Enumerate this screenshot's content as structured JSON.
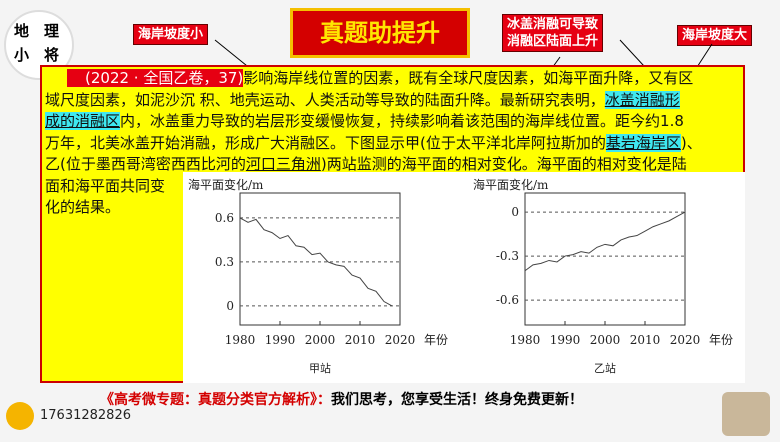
{
  "logo": {
    "text": [
      "地",
      "理",
      "小",
      "将"
    ]
  },
  "banner": {
    "title": "真题助提升"
  },
  "notes": {
    "left": "海岸坡度小",
    "middle": [
      "冰盖消融可导致",
      "消融区陆面上升"
    ],
    "right": "海岸坡度大"
  },
  "question": {
    "lines": [
      [
        "(2022 · 全国乙卷，37)",
        "影响海岸线位置的因素，既有全球尺度因素，如海平面升降，又有区"
      ],
      [
        "域尺度因素，如泥沙沉 积、地壳运动、人类活动等导致的陆面升降。最新研究表明，",
        "冰盖消融形"
      ],
      [
        "成的消融区",
        "内，冰盖重力导致的岩层形变缓慢恢复，持续影响着该范围的海岸线位置。距今约1.8"
      ],
      [
        "万年，北美冰盖开始消融，形成广大消融区。下图显示甲(位于太平洋北岸阿拉斯加的",
        "基岩海岸区",
        ")、"
      ],
      [
        "乙(位于墨西哥湾密西西比河的",
        "河口三角洲",
        ")两站监测的海平面的相对变化。海平面的相对变化是陆"
      ],
      [
        "面和海平面共同变"
      ],
      [
        "化的结果。"
      ]
    ]
  },
  "charts": [
    {
      "type": "line",
      "title": "甲站",
      "y_label": "海平面变化/m",
      "x_label": "年份",
      "x": [
        1980,
        1982,
        1984,
        1986,
        1988,
        1990,
        1992,
        1994,
        1996,
        1998,
        2000,
        2002,
        2004,
        2006,
        2008,
        2010,
        2012,
        2014,
        2016,
        2018
      ],
      "values": [
        0.6,
        0.57,
        0.59,
        0.52,
        0.5,
        0.46,
        0.48,
        0.41,
        0.4,
        0.35,
        0.36,
        0.3,
        0.28,
        0.27,
        0.21,
        0.19,
        0.12,
        0.1,
        0.03,
        0.0
      ],
      "xlim": [
        1980,
        2020
      ],
      "ylim": [
        -0.13,
        0.77
      ],
      "xticks": [
        1980,
        1990,
        2000,
        2010,
        2020
      ],
      "yticks": [
        0,
        0.3,
        0.6
      ]
    },
    {
      "type": "line",
      "title": "乙站",
      "y_label": "海平面变化/m",
      "x_label": "年份",
      "x": [
        1980,
        1982,
        1984,
        1986,
        1988,
        1990,
        1992,
        1994,
        1996,
        1998,
        2000,
        2002,
        2004,
        2006,
        2008,
        2010,
        2012,
        2014,
        2016,
        2018,
        2020
      ],
      "values": [
        -0.4,
        -0.36,
        -0.35,
        -0.33,
        -0.34,
        -0.3,
        -0.29,
        -0.27,
        -0.28,
        -0.24,
        -0.22,
        -0.23,
        -0.19,
        -0.17,
        -0.16,
        -0.13,
        -0.1,
        -0.08,
        -0.06,
        -0.03,
        0.0
      ],
      "xlim": [
        1980,
        2020
      ],
      "ylim": [
        -0.77,
        0.13
      ],
      "xticks": [
        1980,
        1990,
        2000,
        2010,
        2020
      ],
      "yticks": [
        -0.6,
        -0.3,
        0
      ]
    }
  ],
  "footer": {
    "source": "《高考微专题：真题分类官方解析》：",
    "slogan": "我们思考，您享受生活！终身免费更新！",
    "phone": "17631282826"
  }
}
